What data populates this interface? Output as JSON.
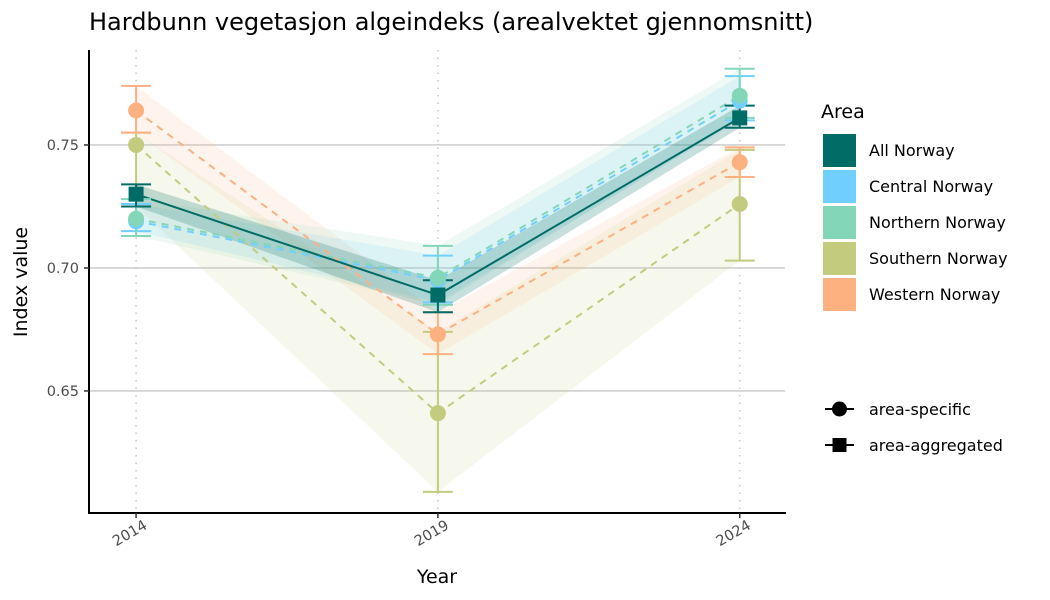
{
  "chart_data": {
    "type": "line",
    "title": "Hardbunn vegetasjon algeindeks (arealvektet gjennomsnitt)",
    "xlabel": "Year",
    "ylabel": "Index value",
    "x": [
      2014,
      2019,
      2024
    ],
    "x_tick_labels": [
      "2014",
      "2019",
      "2024"
    ],
    "y_ticks": [
      0.65,
      0.7,
      0.75
    ],
    "y_tick_labels": [
      "0.65",
      "0.70",
      "0.75"
    ],
    "xlim": [
      2013.22,
      2024.75
    ],
    "ylim": [
      0.6004,
      0.7886
    ],
    "grid": "horizontal major lines; vertical dotted lines at years",
    "legend_position": "right",
    "legend": {
      "title": "Area",
      "entries": [
        "All Norway",
        "Central Norway",
        "Northern Norway",
        "Southern Norway",
        "Western Norway"
      ],
      "shape_entries": [
        {
          "label": "area-specific",
          "shape": "circle"
        },
        {
          "label": "area-aggregated",
          "shape": "square"
        }
      ]
    },
    "series": [
      {
        "name": "Southern Norway",
        "color": "#c3cb7e",
        "type": "area-specific",
        "values": [
          0.75,
          0.641,
          0.726
        ],
        "lower": [
          0.725,
          0.609,
          0.703
        ],
        "upper": [
          0.755,
          0.674,
          0.748
        ]
      },
      {
        "name": "Western Norway",
        "color": "#fdb080",
        "type": "area-specific",
        "values": [
          0.764,
          0.673,
          0.743
        ],
        "lower": [
          0.755,
          0.665,
          0.737
        ],
        "upper": [
          0.774,
          0.682,
          0.749
        ]
      },
      {
        "name": "Central Norway",
        "color": "#70cfff",
        "type": "area-specific",
        "values": [
          0.719,
          0.695,
          0.768
        ],
        "lower": [
          0.715,
          0.686,
          0.76
        ],
        "upper": [
          0.726,
          0.705,
          0.778
        ]
      },
      {
        "name": "Northern Norway",
        "color": "#84d6b9",
        "type": "area-specific",
        "values": [
          0.72,
          0.696,
          0.77
        ],
        "lower": [
          0.713,
          0.685,
          0.761
        ],
        "upper": [
          0.728,
          0.709,
          0.781
        ]
      },
      {
        "name": "All Norway",
        "color": "#006c65",
        "type": "area-aggregated",
        "values": [
          0.73,
          0.689,
          0.761
        ],
        "lower": [
          0.725,
          0.682,
          0.757
        ],
        "upper": [
          0.734,
          0.695,
          0.766
        ]
      }
    ]
  }
}
